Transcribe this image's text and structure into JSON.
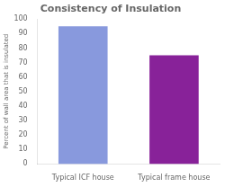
{
  "chart_data": {
    "type": "bar",
    "title": "Consistency of Insulation",
    "categories": [
      "Typical ICF house",
      "Typical frame house"
    ],
    "values": [
      95,
      75
    ],
    "colors": [
      "#8899dd",
      "#882299"
    ],
    "ylabel": "Percent of wall area that is insulated",
    "ylim": [
      0,
      100
    ],
    "yticks": [
      0,
      10,
      20,
      30,
      40,
      50,
      60,
      70,
      80,
      90,
      100
    ],
    "grid": false
  }
}
